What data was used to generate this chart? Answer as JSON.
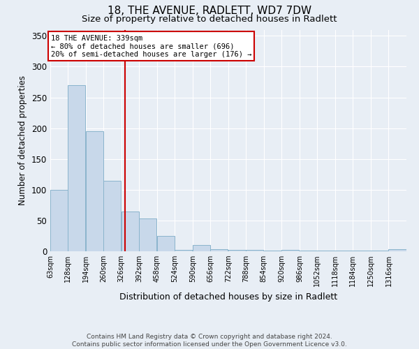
{
  "title": "18, THE AVENUE, RADLETT, WD7 7DW",
  "subtitle": "Size of property relative to detached houses in Radlett",
  "xlabel": "Distribution of detached houses by size in Radlett",
  "ylabel": "Number of detached properties",
  "footer": "Contains HM Land Registry data © Crown copyright and database right 2024.\nContains public sector information licensed under the Open Government Licence v3.0.",
  "bins": [
    63,
    128,
    194,
    260,
    326,
    392,
    458,
    524,
    590,
    656,
    722,
    788,
    854,
    920,
    986,
    1052,
    1118,
    1184,
    1250,
    1316,
    1382
  ],
  "bar_heights": [
    100,
    270,
    195,
    115,
    65,
    53,
    25,
    2,
    10,
    3,
    2,
    2,
    1,
    2,
    1,
    1,
    1,
    1,
    1,
    3
  ],
  "bar_color": "#c8d8ea",
  "bar_edge_color": "#8ab4cc",
  "property_size": 339,
  "property_line_color": "#cc0000",
  "annotation_text": "18 THE AVENUE: 339sqm\n← 80% of detached houses are smaller (696)\n20% of semi-detached houses are larger (176) →",
  "annotation_box_color": "#cc0000",
  "annotation_text_color": "#000000",
  "ylim": [
    0,
    360
  ],
  "background_color": "#e8eef5",
  "plot_background_color": "#e8eef5",
  "grid_color": "#ffffff",
  "title_fontsize": 11,
  "subtitle_fontsize": 9.5,
  "tick_label_fontsize": 7,
  "ylabel_fontsize": 8.5,
  "xlabel_fontsize": 9,
  "footer_fontsize": 6.5
}
